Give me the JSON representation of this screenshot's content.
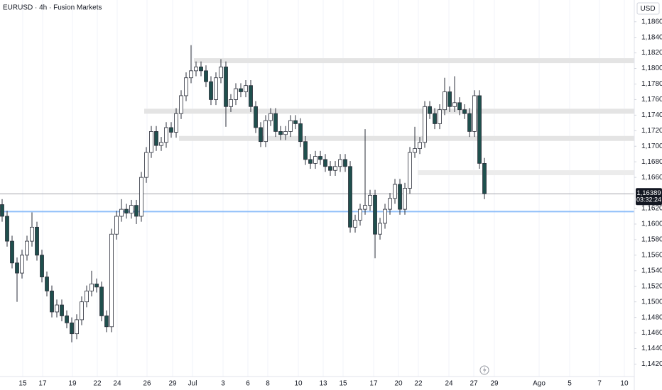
{
  "chart_data": {
    "type": "candlestick",
    "title": "EURUSD · 4h · Fusion Markets",
    "currency": "USD",
    "grid": "x",
    "xlim": [
      -0.43,
      127.14
    ],
    "xticks": [
      {
        "value": 4.14,
        "label": "15"
      },
      {
        "value": 8.14,
        "label": "17"
      },
      {
        "value": 14.14,
        "label": "19"
      },
      {
        "value": 19.14,
        "label": "22"
      },
      {
        "value": 23.14,
        "label": "24"
      },
      {
        "value": 29.14,
        "label": "26"
      },
      {
        "value": 34.29,
        "label": "29"
      },
      {
        "value": 38.29,
        "label": "Jul"
      },
      {
        "value": 44.43,
        "label": "3"
      },
      {
        "value": 49.43,
        "label": "6"
      },
      {
        "value": 53.43,
        "label": "8"
      },
      {
        "value": 59.57,
        "label": "10"
      },
      {
        "value": 64.57,
        "label": "13"
      },
      {
        "value": 68.57,
        "label": "15"
      },
      {
        "value": 74.71,
        "label": "17"
      },
      {
        "value": 79.71,
        "label": "20"
      },
      {
        "value": 83.71,
        "label": "22"
      },
      {
        "value": 89.86,
        "label": "24"
      },
      {
        "value": 94.86,
        "label": "27"
      },
      {
        "value": 99,
        "label": "29"
      },
      {
        "value": 108,
        "label": "Ago"
      },
      {
        "value": 114.14,
        "label": "5"
      },
      {
        "value": 120.14,
        "label": "7"
      },
      {
        "value": 125.14,
        "label": "10"
      }
    ],
    "ylim": [
      1.1404,
      1.1888
    ],
    "yticks": [
      {
        "value": 1.186,
        "label": "1,18600"
      },
      {
        "value": 1.184,
        "label": "1,18400"
      },
      {
        "value": 1.182,
        "label": "1,18200"
      },
      {
        "value": 1.18,
        "label": "1,18000"
      },
      {
        "value": 1.178,
        "label": "1,17800"
      },
      {
        "value": 1.176,
        "label": "1,17600"
      },
      {
        "value": 1.174,
        "label": "1,17400"
      },
      {
        "value": 1.172,
        "label": "1,17200"
      },
      {
        "value": 1.17,
        "label": "1,17000"
      },
      {
        "value": 1.168,
        "label": "1,16800"
      },
      {
        "value": 1.166,
        "label": "1,16600"
      },
      {
        "value": 1.162,
        "label": "1,16200"
      },
      {
        "value": 1.16,
        "label": "1,16000"
      },
      {
        "value": 1.158,
        "label": "1,15800"
      },
      {
        "value": 1.156,
        "label": "1,15600"
      },
      {
        "value": 1.154,
        "label": "1,15400"
      },
      {
        "value": 1.152,
        "label": "1,15200"
      },
      {
        "value": 1.15,
        "label": "1,15000"
      },
      {
        "value": 1.148,
        "label": "1,14800"
      },
      {
        "value": 1.146,
        "label": "1,14600"
      },
      {
        "value": 1.144,
        "label": "1,14400"
      },
      {
        "value": 1.142,
        "label": "1,14200"
      }
    ],
    "open": [
      1.1625,
      1.161,
      1.1578,
      1.155,
      1.1537,
      1.156,
      1.1578,
      1.1596,
      1.156,
      1.1532,
      1.1514,
      1.1487,
      1.1496,
      1.1482,
      1.1473,
      1.1459,
      1.1477,
      1.15,
      1.1514,
      1.1523,
      1.1519,
      1.1482,
      1.1468,
      1.1587,
      1.161,
      1.1619,
      1.1614,
      1.1624,
      1.161,
      1.166,
      1.1692,
      1.1719,
      1.1701,
      1.1705,
      1.1724,
      1.1718,
      1.1742,
      1.1765,
      1.1788,
      1.1797,
      1.1802,
      1.1797,
      1.1783,
      1.176,
      1.1788,
      1.1802,
      1.1751,
      1.176,
      1.1774,
      1.177,
      1.1778,
      1.1751,
      1.1724,
      1.1706,
      1.1733,
      1.1742,
      1.1719,
      1.1715,
      1.1719,
      1.1733,
      1.1729,
      1.1706,
      1.1683,
      1.1678,
      1.1687,
      1.1683,
      1.1674,
      1.1669,
      1.1674,
      1.1683,
      1.1674,
      1.1596,
      1.1605,
      1.1619,
      1.1624,
      1.1637,
      1.1587,
      1.1601,
      1.1619,
      1.1633,
      1.1651,
      1.1619,
      1.1646,
      1.1692,
      1.1697,
      1.1705,
      1.1751,
      1.1742,
      1.1729,
      1.1747,
      1.177,
      1.1751,
      1.1756,
      1.1747,
      1.1742,
      1.1719,
      1.1765,
      1.1678
    ],
    "high": [
      1.1632,
      1.1617,
      1.1585,
      1.1557,
      1.1567,
      1.1585,
      1.1615,
      1.1603,
      1.1567,
      1.1539,
      1.1521,
      1.1503,
      1.1503,
      1.1489,
      1.148,
      1.1484,
      1.1507,
      1.1521,
      1.154,
      1.153,
      1.1526,
      1.1489,
      1.1594,
      1.1617,
      1.1632,
      1.1626,
      1.1631,
      1.1631,
      1.1667,
      1.1699,
      1.1726,
      1.1726,
      1.1712,
      1.1731,
      1.1731,
      1.1749,
      1.1772,
      1.1795,
      1.183,
      1.1809,
      1.1809,
      1.1804,
      1.179,
      1.1795,
      1.1812,
      1.1809,
      1.1767,
      1.1781,
      1.1781,
      1.1785,
      1.1785,
      1.1758,
      1.1731,
      1.174,
      1.1749,
      1.1749,
      1.1726,
      1.1726,
      1.174,
      1.174,
      1.1736,
      1.1713,
      1.169,
      1.1694,
      1.1694,
      1.169,
      1.1681,
      1.1681,
      1.169,
      1.169,
      1.1681,
      1.1612,
      1.1626,
      1.1722,
      1.1644,
      1.1644,
      1.1608,
      1.1626,
      1.164,
      1.1658,
      1.1658,
      1.1653,
      1.1699,
      1.1725,
      1.1712,
      1.1758,
      1.1758,
      1.1749,
      1.1754,
      1.1788,
      1.1777,
      1.179,
      1.1763,
      1.1754,
      1.1749,
      1.1772,
      1.1772,
      1.1685
    ],
    "low": [
      1.1603,
      1.1571,
      1.1543,
      1.15,
      1.153,
      1.1553,
      1.1571,
      1.1553,
      1.1525,
      1.1507,
      1.148,
      1.148,
      1.1475,
      1.1466,
      1.1448,
      1.1452,
      1.147,
      1.1493,
      1.1507,
      1.1512,
      1.1475,
      1.1461,
      1.1461,
      1.158,
      1.1603,
      1.1607,
      1.1607,
      1.16,
      1.1603,
      1.1653,
      1.1685,
      1.1694,
      1.1694,
      1.1698,
      1.1711,
      1.1711,
      1.1735,
      1.1758,
      1.1781,
      1.179,
      1.179,
      1.1776,
      1.1753,
      1.1753,
      1.1781,
      1.1725,
      1.1744,
      1.1753,
      1.1763,
      1.1763,
      1.1744,
      1.1717,
      1.1699,
      1.1699,
      1.1726,
      1.1712,
      1.1708,
      1.1708,
      1.1712,
      1.1722,
      1.1699,
      1.1676,
      1.1671,
      1.1671,
      1.1676,
      1.1667,
      1.1662,
      1.1662,
      1.1667,
      1.1667,
      1.1589,
      1.1589,
      1.1598,
      1.1612,
      1.1617,
      1.1556,
      1.158,
      1.1594,
      1.1612,
      1.1626,
      1.1612,
      1.1612,
      1.1639,
      1.1685,
      1.169,
      1.1698,
      1.1735,
      1.1722,
      1.1722,
      1.174,
      1.1744,
      1.1744,
      1.174,
      1.1735,
      1.1712,
      1.1712,
      1.1671,
      1.1632
    ],
    "close": [
      1.161,
      1.1578,
      1.155,
      1.1537,
      1.156,
      1.1578,
      1.1596,
      1.156,
      1.1532,
      1.1514,
      1.1487,
      1.1496,
      1.1482,
      1.1473,
      1.1459,
      1.1477,
      1.15,
      1.1514,
      1.1523,
      1.1519,
      1.1482,
      1.1468,
      1.1587,
      1.161,
      1.1619,
      1.1614,
      1.1624,
      1.161,
      1.166,
      1.1692,
      1.1719,
      1.1701,
      1.1705,
      1.1724,
      1.1718,
      1.1742,
      1.1765,
      1.1788,
      1.1797,
      1.1802,
      1.1797,
      1.1783,
      1.176,
      1.1788,
      1.1802,
      1.1751,
      1.176,
      1.1774,
      1.177,
      1.1778,
      1.1751,
      1.1724,
      1.1706,
      1.1733,
      1.1742,
      1.1719,
      1.1715,
      1.1719,
      1.1733,
      1.1729,
      1.1706,
      1.1683,
      1.1678,
      1.1687,
      1.1683,
      1.1674,
      1.1669,
      1.1674,
      1.1683,
      1.1674,
      1.1596,
      1.1605,
      1.1619,
      1.1624,
      1.1637,
      1.1587,
      1.1601,
      1.1619,
      1.1633,
      1.1651,
      1.1619,
      1.1646,
      1.1692,
      1.1697,
      1.1705,
      1.1751,
      1.1742,
      1.1729,
      1.1747,
      1.177,
      1.1751,
      1.1756,
      1.1747,
      1.1742,
      1.1719,
      1.1765,
      1.1678,
      1.1639
    ],
    "up_color": "#ffffff",
    "down_color": "#1f4f4d",
    "border_color": "#2a2e39",
    "zones": [
      {
        "price": 1.181,
        "from": 39,
        "color": "#e4e4e4"
      },
      {
        "price": 1.1745,
        "from": 29,
        "color": "#e4e4e4"
      },
      {
        "price": 1.171,
        "from": 36,
        "color": "#e4e4e4"
      },
      {
        "price": 1.1666,
        "from": 84,
        "color": "#ececec"
      }
    ],
    "support_line": {
      "value": 1.1616,
      "color": "#90bff9"
    },
    "last_price": {
      "value": 1.16389,
      "label": "1,16389"
    },
    "countdown": "03:32:24"
  }
}
